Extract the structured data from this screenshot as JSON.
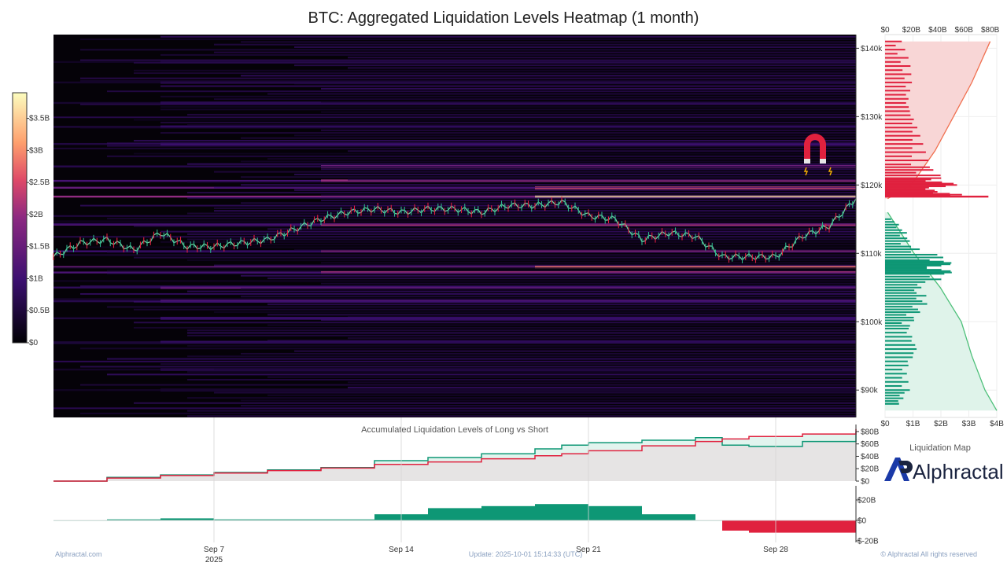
{
  "title": "BTC: Aggregated Liquidation Levels Heatmap (1 month)",
  "colors": {
    "long": "#0e9775",
    "short": "#e0213e",
    "area_long": "#dff3ec",
    "area_short": "#f8dde0",
    "area_base": "#e6e4e4"
  },
  "chart_data": [
    {
      "type": "heatmap",
      "title": "BTC: Aggregated Liquidation Levels Heatmap (1 month)",
      "x_ticks": [
        "Sep 7",
        "Sep 14",
        "Sep 21",
        "Sep 28"
      ],
      "x_sublabel": "2025",
      "y_ticks": [
        "$90k",
        "$100k",
        "$110k",
        "$120k",
        "$130k",
        "$140k"
      ],
      "ylim": [
        86000,
        142000
      ],
      "colorbar_ticks": [
        "$0",
        "$0.5B",
        "$1B",
        "$1.5B",
        "$2B",
        "$2.5B",
        "$3B",
        "$3.5B"
      ],
      "colorbar_range": [
        0,
        3.9
      ],
      "price_series": {
        "dates": [
          "Sep 1",
          "Sep 2",
          "Sep 3",
          "Sep 4",
          "Sep 5",
          "Sep 6",
          "Sep 7",
          "Sep 8",
          "Sep 9",
          "Sep 10",
          "Sep 11",
          "Sep 12",
          "Sep 13",
          "Sep 14",
          "Sep 15",
          "Sep 16",
          "Sep 17",
          "Sep 18",
          "Sep 19",
          "Sep 20",
          "Sep 21",
          "Sep 22",
          "Sep 23",
          "Sep 24",
          "Sep 25",
          "Sep 26",
          "Sep 27",
          "Sep 28",
          "Sep 29",
          "Sep 30",
          "Oct 1"
        ],
        "values": [
          109500,
          111500,
          112000,
          110500,
          113000,
          111000,
          111000,
          111500,
          112000,
          113500,
          115000,
          116000,
          116500,
          116000,
          116500,
          116500,
          116000,
          117000,
          117000,
          117500,
          115500,
          115000,
          112000,
          113000,
          112500,
          109500,
          109500,
          109500,
          112500,
          114000,
          118000
        ]
      },
      "bands": [
        {
          "price": 118300,
          "intensity": 3.6
        },
        {
          "price": 119600,
          "intensity": 2.6
        },
        {
          "price": 120600,
          "intensity": 2.0
        },
        {
          "price": 122700,
          "intensity": 1.6
        },
        {
          "price": 114200,
          "intensity": 2.2
        },
        {
          "price": 108000,
          "intensity": 2.8
        },
        {
          "price": 107200,
          "intensity": 2.1
        },
        {
          "price": 110300,
          "intensity": 1.8
        },
        {
          "price": 105000,
          "intensity": 1.4
        },
        {
          "price": 103000,
          "intensity": 1.2
        },
        {
          "price": 100500,
          "intensity": 0.9
        },
        {
          "price": 97000,
          "intensity": 0.8
        },
        {
          "price": 126000,
          "intensity": 1.0
        },
        {
          "price": 128500,
          "intensity": 0.9
        },
        {
          "price": 132000,
          "intensity": 0.7
        },
        {
          "price": 135000,
          "intensity": 0.6
        },
        {
          "price": 138000,
          "intensity": 0.5
        },
        {
          "price": 93000,
          "intensity": 0.6
        },
        {
          "price": 90000,
          "intensity": 0.5
        }
      ]
    },
    {
      "type": "bar",
      "title": "Liquidation Map",
      "x_ticks_top": [
        "$0",
        "$20B",
        "$40B",
        "$60B",
        "$80B"
      ],
      "x_ticks_bottom": [
        "$0",
        "$1B",
        "$2B",
        "$3B",
        "$4B"
      ],
      "short_levels": {
        "prices": [
          141000,
          138000,
          135000,
          132000,
          129000,
          126000,
          123000,
          121000,
          120000,
          119000,
          118300
        ],
        "values": [
          0.6,
          0.9,
          1.0,
          0.9,
          1.2,
          1.4,
          1.6,
          2.2,
          2.6,
          1.9,
          3.7
        ]
      },
      "long_levels": {
        "prices": [
          115000,
          113000,
          111000,
          109000,
          108000,
          107000,
          105000,
          103000,
          101000,
          99000,
          96000,
          93000,
          90000,
          88000
        ],
        "values": [
          0.3,
          0.8,
          1.0,
          2.6,
          2.2,
          2.5,
          1.3,
          1.6,
          1.2,
          0.9,
          1.3,
          0.8,
          0.9,
          0.5
        ]
      },
      "cumulative_short": {
        "prices": [
          118000,
          120000,
          125000,
          130000,
          135000,
          141000
        ],
        "values": [
          2,
          20,
          38,
          52,
          66,
          80
        ]
      },
      "cumulative_long": {
        "prices": [
          116000,
          110000,
          105000,
          100000,
          95000,
          90000,
          87000
        ],
        "values": [
          2,
          22,
          42,
          58,
          66,
          76,
          85
        ]
      }
    },
    {
      "type": "area",
      "title": "Accumulated Liquidation Levels of Long vs Short",
      "y_ticks": [
        "$0",
        "$20B",
        "$40B",
        "$60B",
        "$80B"
      ],
      "ylim": [
        0,
        85
      ],
      "x": [
        "Sep 1",
        "Sep 3",
        "Sep 5",
        "Sep 7",
        "Sep 9",
        "Sep 11",
        "Sep 13",
        "Sep 15",
        "Sep 17",
        "Sep 19",
        "Sep 20",
        "Sep 21",
        "Sep 23",
        "Sep 25",
        "Sep 26",
        "Sep 27",
        "Sep 29",
        "Oct 1"
      ],
      "series": [
        {
          "name": "Long",
          "values": [
            0,
            6,
            10,
            14,
            18,
            22,
            33,
            38,
            44,
            52,
            58,
            62,
            66,
            70,
            58,
            56,
            64,
            80
          ]
        },
        {
          "name": "Short",
          "values": [
            0,
            5,
            9,
            13,
            17,
            21,
            27,
            31,
            36,
            41,
            44,
            49,
            57,
            64,
            68,
            72,
            76,
            84
          ]
        }
      ]
    },
    {
      "type": "bar",
      "title": "",
      "y_ticks": [
        "$20B",
        "$0",
        "$-20B"
      ],
      "ylim": [
        -25,
        25
      ],
      "x": [
        "Sep 1",
        "Sep 3",
        "Sep 5",
        "Sep 7",
        "Sep 9",
        "Sep 11",
        "Sep 13",
        "Sep 15",
        "Sep 17",
        "Sep 19",
        "Sep 20",
        "Sep 21",
        "Sep 23",
        "Sep 25",
        "Sep 26",
        "Sep 27",
        "Sep 29",
        "Oct 1"
      ],
      "values": [
        0,
        1,
        2,
        1,
        1,
        1,
        6,
        12,
        14,
        16,
        16,
        14,
        6,
        0,
        -10,
        -12,
        -12,
        4
      ]
    }
  ],
  "footer": {
    "left": "Alphractal.com",
    "center": "Update: 2025-10-01 15:14:33 (UTC)",
    "right": "© Alphractal All rights reserved"
  },
  "logo": {
    "name": "Alphractal",
    "mark_lettering": "AP"
  },
  "liquidation_map_label": "Liquidation Map",
  "icons": {
    "magnet": "magnet-icon"
  }
}
